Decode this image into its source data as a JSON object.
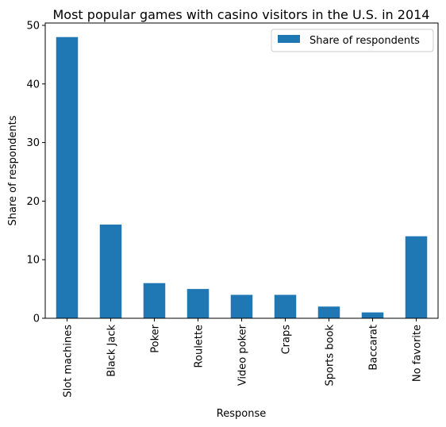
{
  "chart_data": {
    "type": "bar",
    "title": "Most popular games with casino visitors in the U.S. in 2014",
    "xlabel": "Response",
    "ylabel": "Share of respondents",
    "categories": [
      "Slot machines",
      "Black Jack",
      "Poker",
      "Roulette",
      "Video poker",
      "Craps",
      "Sports book",
      "Baccarat",
      "No favorite"
    ],
    "series": [
      {
        "name": "Share of respondents",
        "values": [
          48,
          16,
          6,
          5,
          4,
          4,
          2,
          1,
          14
        ],
        "color": "#1f77b4"
      }
    ],
    "ylim": [
      0,
      50.4
    ],
    "yticks": [
      0,
      10,
      20,
      30,
      40,
      50
    ],
    "grid": false,
    "legend_position": "top-right"
  }
}
